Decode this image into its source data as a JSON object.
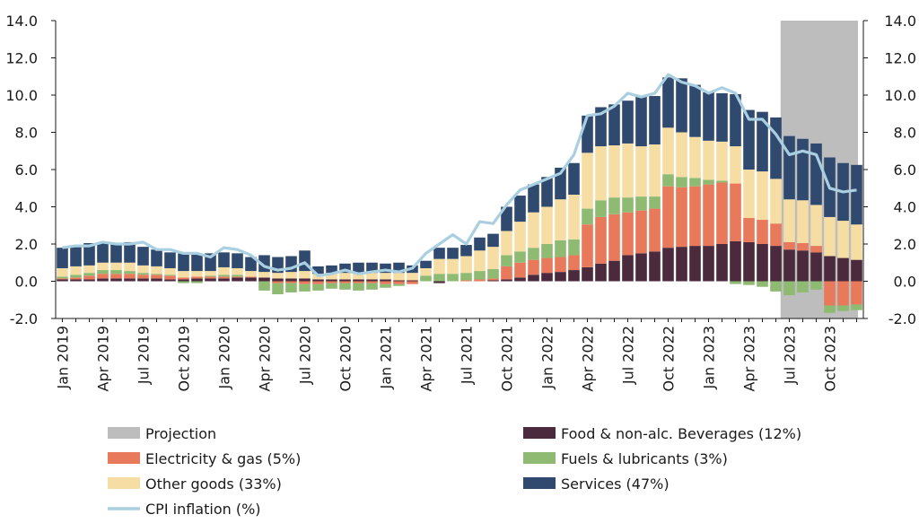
{
  "chart_data": {
    "type": "bar",
    "subtype": "stacked bar with line overlay",
    "title": "",
    "xlabel": "",
    "ylabel": "",
    "ylim": [
      -2,
      14
    ],
    "yticks": [
      "14.0",
      "12.0",
      "10.0",
      "8.0",
      "6.0",
      "4.0",
      "2.0",
      "0.0",
      "-2.0"
    ],
    "ytick_values": [
      14,
      12,
      10,
      8,
      6,
      4,
      2,
      0,
      -2
    ],
    "right_axis": true,
    "grid": false,
    "legend_position": "bottom",
    "projection_start": "Jul 2023",
    "projection_label": "Projection",
    "projection_color": "#bdbdbd",
    "x_tick_labels": [
      "Jan 2019",
      "Apr 2019",
      "Jul 2019",
      "Oct 2019",
      "Jan 2020",
      "Apr 2020",
      "Jul 2020",
      "Oct 2020",
      "Jan 2021",
      "Apr 2021",
      "Jul 2021",
      "Oct 2021",
      "Jan 2022",
      "Apr 2022",
      "Jul 2022",
      "Oct 2022",
      "Jan 2023",
      "Apr 2023",
      "Jul 2023",
      "Oct 2023"
    ],
    "categories": [
      "Jan 2019",
      "Feb 2019",
      "Mar 2019",
      "Apr 2019",
      "May 2019",
      "Jun 2019",
      "Jul 2019",
      "Aug 2019",
      "Sep 2019",
      "Oct 2019",
      "Nov 2019",
      "Dec 2019",
      "Jan 2020",
      "Feb 2020",
      "Mar 2020",
      "Apr 2020",
      "May 2020",
      "Jun 2020",
      "Jul 2020",
      "Aug 2020",
      "Sep 2020",
      "Oct 2020",
      "Nov 2020",
      "Dec 2020",
      "Jan 2021",
      "Feb 2021",
      "Mar 2021",
      "Apr 2021",
      "May 2021",
      "Jun 2021",
      "Jul 2021",
      "Aug 2021",
      "Sep 2021",
      "Oct 2021",
      "Nov 2021",
      "Dec 2021",
      "Jan 2022",
      "Feb 2022",
      "Mar 2022",
      "Apr 2022",
      "May 2022",
      "Jun 2022",
      "Jul 2022",
      "Aug 2022",
      "Sep 2022",
      "Oct 2022",
      "Nov 2022",
      "Dec 2022",
      "Jan 2023",
      "Feb 2023",
      "Mar 2023",
      "Apr 2023",
      "May 2023",
      "Jun 2023",
      "Jul 2023",
      "Aug 2023",
      "Sep 2023",
      "Oct 2023",
      "Nov 2023",
      "Dec 2023"
    ],
    "series": [
      {
        "name": "Food & non-alc. Beverages (12%)",
        "color": "#4a2a3c",
        "values": [
          0.1,
          0.1,
          0.1,
          0.15,
          0.15,
          0.15,
          0.15,
          0.15,
          0.1,
          0.1,
          0.15,
          0.15,
          0.15,
          0.2,
          0.2,
          0.2,
          0.15,
          0.15,
          0.15,
          0.1,
          0.1,
          0.1,
          0.1,
          0.1,
          0.1,
          0.05,
          0.05,
          0.0,
          -0.1,
          0.0,
          0.0,
          0.0,
          0.05,
          0.1,
          0.2,
          0.35,
          0.45,
          0.5,
          0.6,
          0.75,
          0.95,
          1.1,
          1.4,
          1.5,
          1.6,
          1.8,
          1.85,
          1.9,
          1.9,
          2.0,
          2.15,
          2.1,
          2.0,
          1.9,
          1.7,
          1.65,
          1.55,
          1.35,
          1.25,
          1.15
        ]
      },
      {
        "name": "Electricity & gas (5%)",
        "color": "#e8795a",
        "values": [
          0.05,
          0.1,
          0.2,
          0.25,
          0.25,
          0.25,
          0.2,
          0.2,
          0.2,
          0.1,
          0.1,
          0.1,
          0.1,
          0.05,
          0.05,
          0.0,
          -0.1,
          -0.1,
          -0.15,
          -0.15,
          -0.1,
          -0.1,
          -0.1,
          -0.1,
          -0.15,
          -0.15,
          -0.15,
          0.0,
          0.0,
          0.0,
          0.05,
          0.1,
          0.1,
          0.7,
          0.8,
          0.8,
          0.8,
          0.8,
          0.8,
          2.3,
          2.5,
          2.5,
          2.3,
          2.3,
          2.3,
          3.3,
          3.2,
          3.2,
          3.3,
          3.3,
          3.1,
          1.3,
          1.3,
          1.2,
          0.4,
          0.4,
          0.35,
          -1.3,
          -1.3,
          -1.25
        ]
      },
      {
        "name": "Fuels & lubricants (3%)",
        "color": "#8fba72",
        "values": [
          0.1,
          0.15,
          0.15,
          0.2,
          0.2,
          0.15,
          0.1,
          0.05,
          0.05,
          -0.1,
          -0.1,
          0.05,
          0.1,
          0.1,
          0.0,
          -0.5,
          -0.6,
          -0.5,
          -0.4,
          -0.35,
          -0.3,
          -0.35,
          -0.4,
          -0.35,
          -0.2,
          -0.1,
          0.0,
          0.3,
          0.4,
          0.4,
          0.4,
          0.45,
          0.5,
          0.6,
          0.6,
          0.65,
          0.75,
          0.9,
          0.85,
          0.85,
          0.9,
          0.9,
          0.8,
          0.75,
          0.65,
          0.65,
          0.55,
          0.45,
          0.25,
          0.1,
          -0.15,
          -0.2,
          -0.3,
          -0.55,
          -0.75,
          -0.6,
          -0.45,
          -0.4,
          -0.3,
          -0.3
        ]
      },
      {
        "name": "Other goods (33%)",
        "color": "#f6dda3",
        "values": [
          0.45,
          0.45,
          0.4,
          0.4,
          0.4,
          0.45,
          0.4,
          0.4,
          0.35,
          0.35,
          0.3,
          0.25,
          0.4,
          0.35,
          0.3,
          0.3,
          0.3,
          0.35,
          0.4,
          0.3,
          0.35,
          0.35,
          0.35,
          0.35,
          0.35,
          0.4,
          0.4,
          0.4,
          0.8,
          0.8,
          0.9,
          1.1,
          1.2,
          1.3,
          1.6,
          1.9,
          2.0,
          2.2,
          2.4,
          3.0,
          2.9,
          2.8,
          2.9,
          2.7,
          2.8,
          2.5,
          2.4,
          2.2,
          2.1,
          2.1,
          2.0,
          2.6,
          2.6,
          2.4,
          2.3,
          2.3,
          2.2,
          2.1,
          2.0,
          1.9
        ]
      },
      {
        "name": "Services (47%)",
        "color": "#2f4a6e",
        "values": [
          1.1,
          1.1,
          1.2,
          1.1,
          1.05,
          1.1,
          1.0,
          0.9,
          0.85,
          0.95,
          0.9,
          0.95,
          0.8,
          0.8,
          0.75,
          0.9,
          0.85,
          0.85,
          1.1,
          0.4,
          0.4,
          0.5,
          0.55,
          0.55,
          0.5,
          0.55,
          0.4,
          0.4,
          0.6,
          0.6,
          0.6,
          0.7,
          0.7,
          1.3,
          1.4,
          1.5,
          1.6,
          1.7,
          1.7,
          2.0,
          2.1,
          2.2,
          2.3,
          2.7,
          2.6,
          2.7,
          2.9,
          2.8,
          2.6,
          2.6,
          2.8,
          3.2,
          3.2,
          3.3,
          3.4,
          3.3,
          3.3,
          3.2,
          3.1,
          3.2
        ]
      }
    ],
    "line": {
      "name": "CPI inflation (%)",
      "color": "#a9cfe0",
      "values": [
        1.8,
        1.9,
        1.9,
        2.1,
        2.0,
        2.0,
        2.1,
        1.7,
        1.7,
        1.5,
        1.5,
        1.3,
        1.8,
        1.7,
        1.4,
        0.8,
        0.6,
        0.7,
        1.0,
        0.3,
        0.4,
        0.6,
        0.4,
        0.5,
        0.6,
        0.5,
        0.7,
        1.5,
        2.0,
        2.5,
        2.0,
        3.2,
        3.1,
        4.1,
        4.9,
        5.2,
        5.5,
        5.8,
        6.8,
        8.9,
        9.0,
        9.4,
        10.1,
        9.9,
        10.1,
        11.1,
        10.7,
        10.5,
        10.1,
        10.4,
        10.1,
        8.7,
        8.7,
        7.9,
        6.8,
        7.0,
        6.8,
        5.0,
        4.8,
        4.9
      ]
    }
  }
}
